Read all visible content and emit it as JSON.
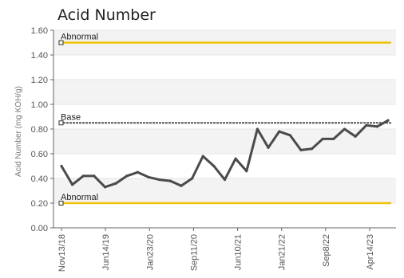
{
  "chart_data": {
    "type": "line",
    "title": "Acid Number",
    "ylabel": "Acid Number (mg KOH/g)",
    "xlabel": "",
    "ylim": [
      0,
      1.6
    ],
    "yticks": [
      "0.00",
      "0.20",
      "0.40",
      "0.60",
      "0.80",
      "1.00",
      "1.20",
      "1.40",
      "1.60"
    ],
    "grid": true,
    "x_tick_labels": [
      "Nov13/18",
      "Jun14/19",
      "Jan23/20",
      "Sep11/20",
      "Jun10/21",
      "Jan21/22",
      "Sep8/22",
      "Apr14/23"
    ],
    "series": [
      {
        "values": [
          0.5,
          0.35,
          0.42,
          0.42,
          0.33,
          0.36,
          0.42,
          0.45,
          0.41,
          0.39,
          0.38,
          0.34,
          0.4,
          0.58,
          0.5,
          0.39,
          0.56,
          0.46,
          0.8,
          0.65,
          0.78,
          0.75,
          0.63,
          0.64,
          0.72,
          0.72,
          0.8,
          0.74,
          0.83,
          0.82,
          0.87
        ],
        "color": "#4a4a4a"
      }
    ],
    "reference_lines": [
      {
        "label": "Abnormal",
        "value": 1.5,
        "color": "#f2c200"
      },
      {
        "label": "Base",
        "value": 0.85,
        "color": "#555555"
      },
      {
        "label": "Abnormal",
        "value": 0.2,
        "color": "#f2c200"
      }
    ]
  }
}
